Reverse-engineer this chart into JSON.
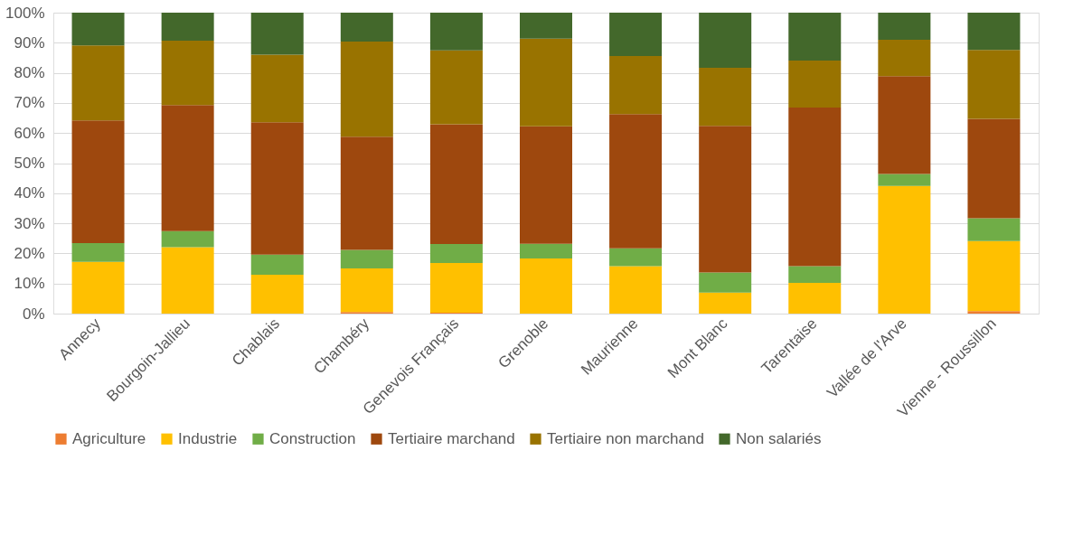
{
  "chart_data": {
    "type": "bar",
    "stacked": true,
    "categories": [
      "Annecy",
      "Bourgoin-Jallieu",
      "Chablais",
      "Chambéry",
      "Genevois Français",
      "Grenoble",
      "Maurienne",
      "Mont Blanc",
      "Tarentaise",
      "Vallée de l'Arve",
      "Vienne - Roussillon"
    ],
    "series": [
      {
        "name": "Agriculture",
        "color": "#ed7d31",
        "values": [
          null,
          null,
          null,
          0.5,
          0.3,
          null,
          null,
          null,
          null,
          null,
          0.8
        ]
      },
      {
        "name": "Industrie",
        "color": "#ffc000",
        "values": [
          17.2,
          22.1,
          12.9,
          14.5,
          16.5,
          18.3,
          15.8,
          7.0,
          10.2,
          42.4,
          23.3
        ]
      },
      {
        "name": "Construction",
        "color": "#70ad47",
        "values": [
          6.2,
          5.3,
          6.7,
          6.2,
          6.3,
          4.9,
          5.9,
          6.7,
          5.6,
          4.0,
          7.6
        ]
      },
      {
        "name": "Tertiaire marchand",
        "color": "#9e480e",
        "values": [
          40.8,
          41.9,
          44.0,
          37.6,
          39.8,
          39.0,
          44.6,
          48.7,
          52.7,
          32.5,
          33.0
        ]
      },
      {
        "name": "Tertiaire non marchand",
        "color": "#997300",
        "values": [
          24.9,
          21.4,
          22.4,
          31.6,
          24.6,
          29.2,
          19.3,
          19.3,
          15.6,
          12.1,
          22.9
        ]
      },
      {
        "name": "Non salariés",
        "color": "#43682b",
        "values": [
          10.9,
          9.3,
          14.0,
          9.6,
          12.5,
          8.6,
          14.4,
          18.3,
          15.9,
          9.0,
          12.4
        ]
      }
    ],
    "ylim": [
      0,
      100
    ],
    "yticks": [
      {
        "value": 0,
        "label": "0%"
      },
      {
        "value": 10,
        "label": "10%"
      },
      {
        "value": 20,
        "label": "20%"
      },
      {
        "value": 30,
        "label": "30%"
      },
      {
        "value": 40,
        "label": "40%"
      },
      {
        "value": 50,
        "label": "50%"
      },
      {
        "value": 60,
        "label": "60%"
      },
      {
        "value": 70,
        "label": "70%"
      },
      {
        "value": 80,
        "label": "80%"
      },
      {
        "value": 90,
        "label": "90%"
      },
      {
        "value": 100,
        "label": "100%"
      }
    ],
    "grid": "y",
    "legend": "bottom"
  }
}
